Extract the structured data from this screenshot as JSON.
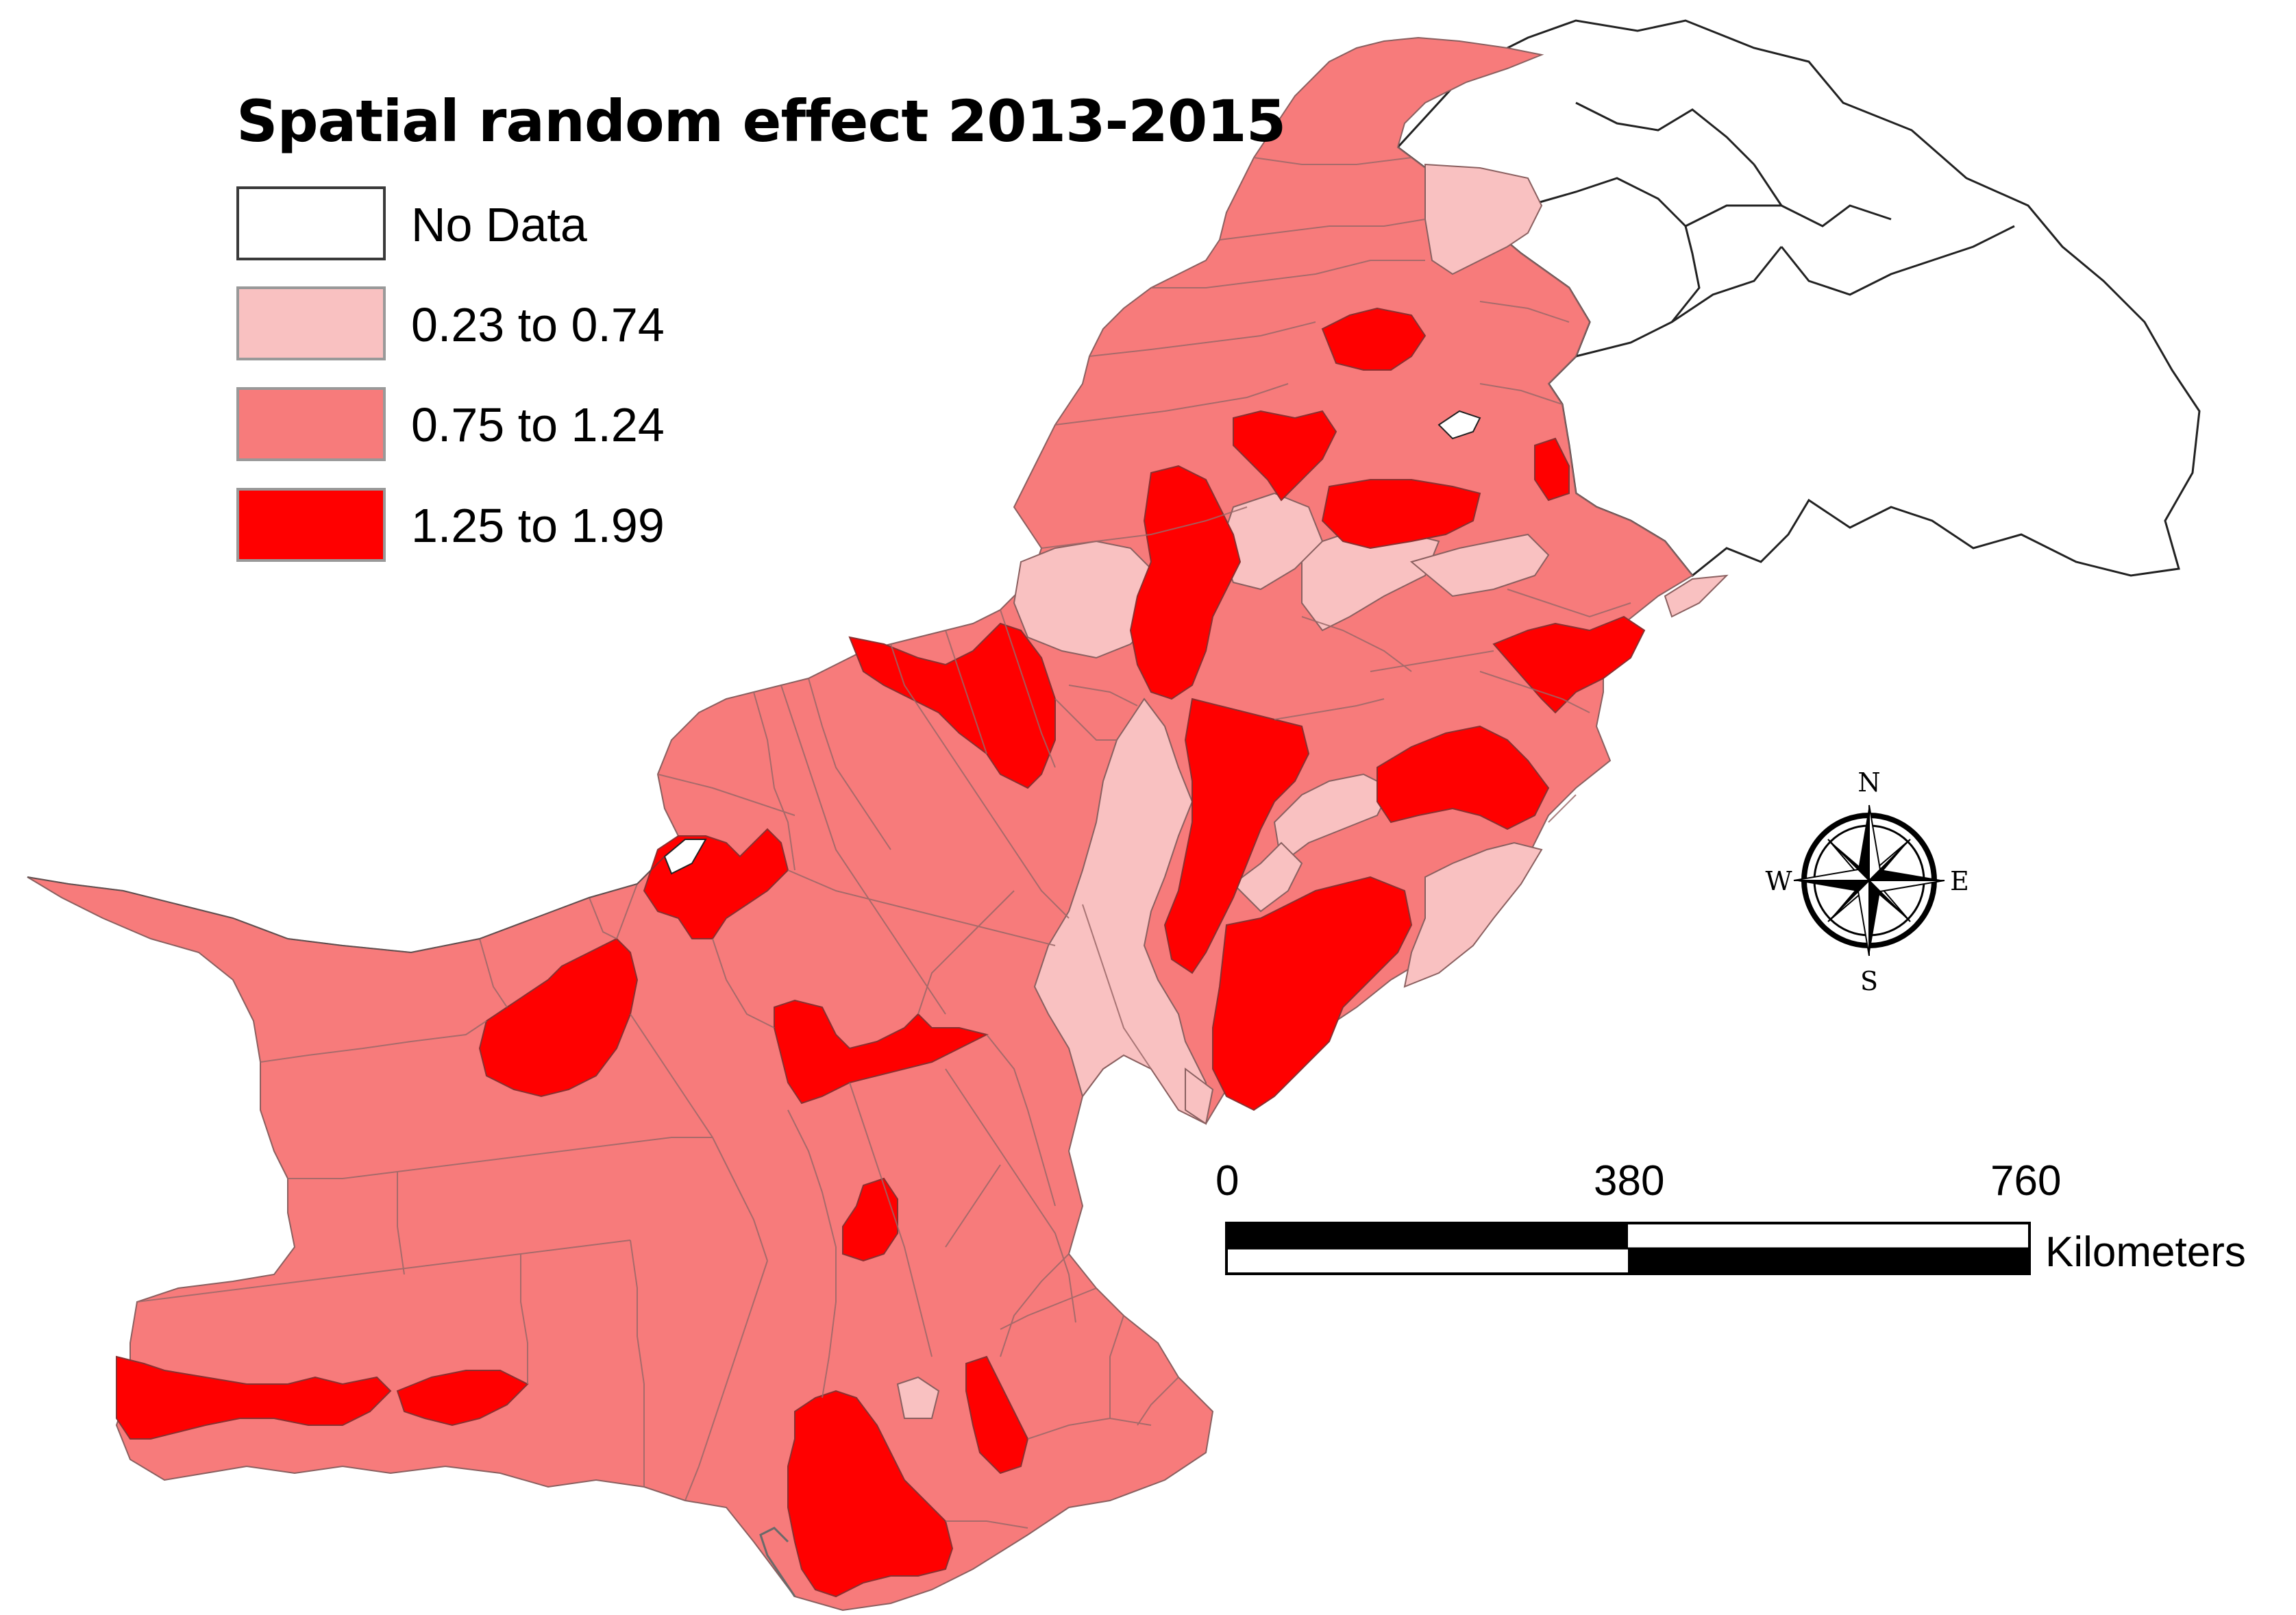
{
  "title": "Spatial random effect 2013-2015",
  "legend": {
    "items": [
      {
        "label": "No Data",
        "color": "#ffffff"
      },
      {
        "label": "0.23 to 0.74",
        "color": "#f9c1c1"
      },
      {
        "label": "0.75 to 1.24",
        "color": "#f77b7b"
      },
      {
        "label": "1.25 to 1.99",
        "color": "#ff0000"
      }
    ]
  },
  "scale_bar": {
    "ticks": [
      "0",
      "380",
      "760"
    ],
    "unit": "Kilometers"
  },
  "compass": {
    "north": "N",
    "south": "S",
    "east": "E",
    "west": "W"
  },
  "colors": {
    "no_data": "#ffffff",
    "low": "#f9c1c1",
    "mid": "#f77b7b",
    "high": "#ff0000",
    "border": "#8a6060",
    "outline": "#222222"
  }
}
